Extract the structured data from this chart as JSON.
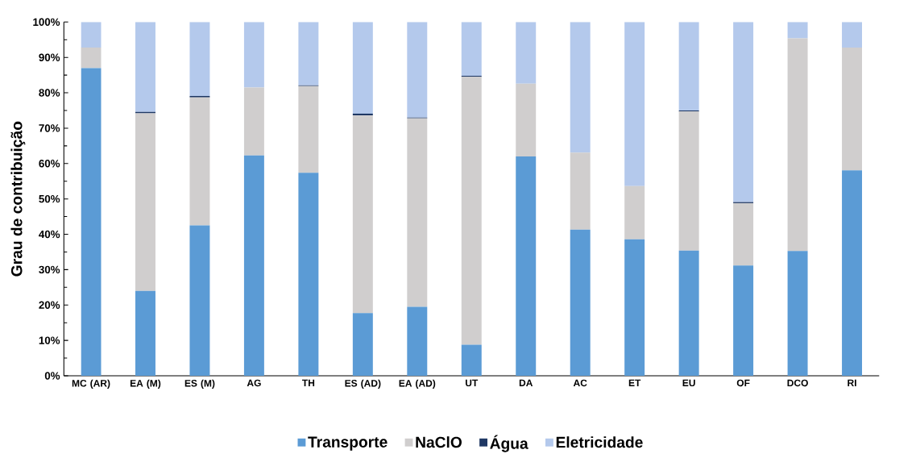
{
  "chart_data": {
    "type": "bar",
    "stacked": true,
    "ylabel": "Grau de contribuição",
    "categories": [
      "MC (AR)",
      "EA (M)",
      "ES (M)",
      "AG",
      "TH",
      "ES (AD)",
      "EA (AD)",
      "UT",
      "DA",
      "AC",
      "ET",
      "EU",
      "OF",
      "DCO",
      "RI"
    ],
    "series": [
      {
        "name": "Transporte",
        "color": "#5b9bd5",
        "values": [
          87.0,
          24.0,
          42.5,
          62.3,
          57.4,
          17.7,
          19.5,
          8.8,
          62.0,
          41.3,
          38.6,
          35.4,
          31.2,
          35.3,
          58.1
        ]
      },
      {
        "name": "NaClO",
        "color": "#d0cece",
        "values": [
          5.8,
          50.2,
          36.2,
          19.2,
          24.5,
          55.9,
          53.3,
          75.7,
          20.6,
          21.8,
          15.0,
          39.3,
          17.6,
          60.1,
          34.7
        ]
      },
      {
        "name": "Água",
        "color": "#1f3864",
        "values": [
          0,
          0.4,
          0.4,
          0,
          0.2,
          0.5,
          0.2,
          0.3,
          0,
          0,
          0,
          0.3,
          0.3,
          0,
          0
        ]
      },
      {
        "name": "Eletricidade",
        "color": "#b4c9ec",
        "values": [
          7.2,
          25.4,
          20.9,
          18.5,
          17.9,
          25.9,
          27.0,
          15.2,
          17.4,
          36.9,
          46.4,
          25.0,
          50.9,
          4.6,
          7.2
        ]
      }
    ],
    "ylim": [
      0,
      100
    ],
    "yticks": [
      {
        "value": 0,
        "label": "0%"
      },
      {
        "value": 10,
        "label": "10%"
      },
      {
        "value": 20,
        "label": "20%"
      },
      {
        "value": 30,
        "label": "30%"
      },
      {
        "value": 40,
        "label": "40%"
      },
      {
        "value": 50,
        "label": "50%"
      },
      {
        "value": 60,
        "label": "60%"
      },
      {
        "value": 70,
        "label": "70%"
      },
      {
        "value": 80,
        "label": "80%"
      },
      {
        "value": 90,
        "label": "90%"
      },
      {
        "value": 100,
        "label": "100%"
      }
    ],
    "grid": false,
    "legend": "bottom"
  }
}
